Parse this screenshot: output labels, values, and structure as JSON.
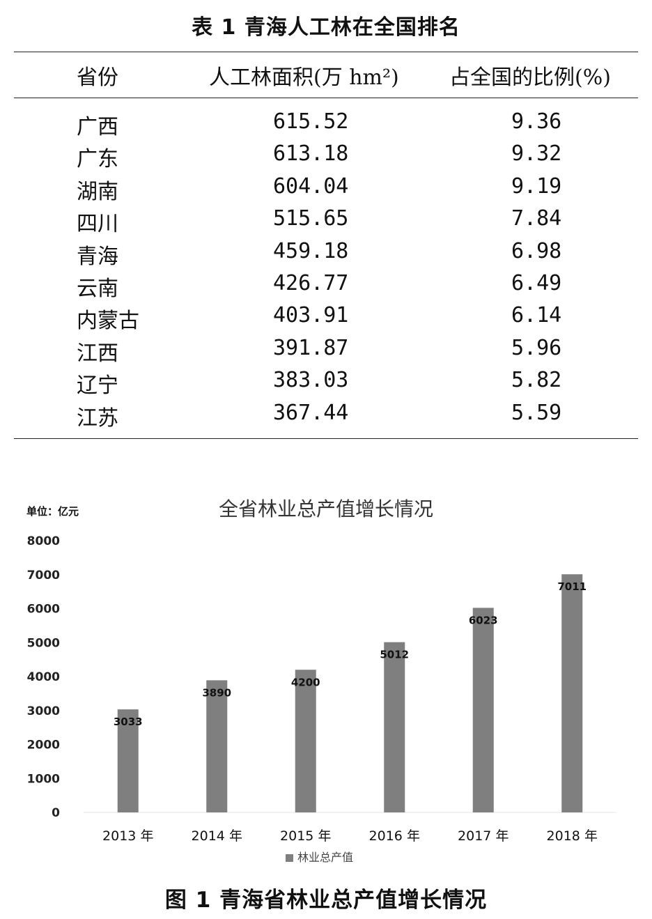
{
  "table": {
    "title": "表 1   青海人工林在全国排名",
    "headers": [
      "省份",
      "人工林面积(万 hm²)",
      "占全国的比例(%)"
    ],
    "rows": [
      [
        "广西",
        "615.52",
        "9.36"
      ],
      [
        "广东",
        "613.18",
        "9.32"
      ],
      [
        "湖南",
        "604.04",
        "9.19"
      ],
      [
        "四川",
        "515.65",
        "7.84"
      ],
      [
        "青海",
        "459.18",
        "6.98"
      ],
      [
        "云南",
        "426.77",
        "6.49"
      ],
      [
        "内蒙古",
        "403.91",
        "6.14"
      ],
      [
        "江西",
        "391.87",
        "5.96"
      ],
      [
        "辽宁",
        "383.03",
        "5.82"
      ],
      [
        "江苏",
        "367.44",
        "5.59"
      ]
    ]
  },
  "chart_data": {
    "type": "bar",
    "title": "全省林业总产值增长情况",
    "unit_label": "单位：亿元",
    "categories": [
      "2013 年",
      "2014 年",
      "2015 年",
      "2016 年",
      "2017 年",
      "2018 年"
    ],
    "series": [
      {
        "name": "林业总产值",
        "values": [
          3033,
          3890,
          4200,
          5012,
          6023,
          7011
        ],
        "color": "#7f7f7f"
      }
    ],
    "data_labels": [
      "3033",
      "3890",
      "4200",
      "5012",
      "6023",
      "7011"
    ],
    "ylim": [
      0,
      8000
    ],
    "yticks": [
      "0",
      "1000",
      "2000",
      "3000",
      "4000",
      "5000",
      "6000",
      "7000",
      "8000"
    ],
    "grid": false,
    "legend": "bottom"
  },
  "caption": "图 1   青海省林业总产值增长情况"
}
